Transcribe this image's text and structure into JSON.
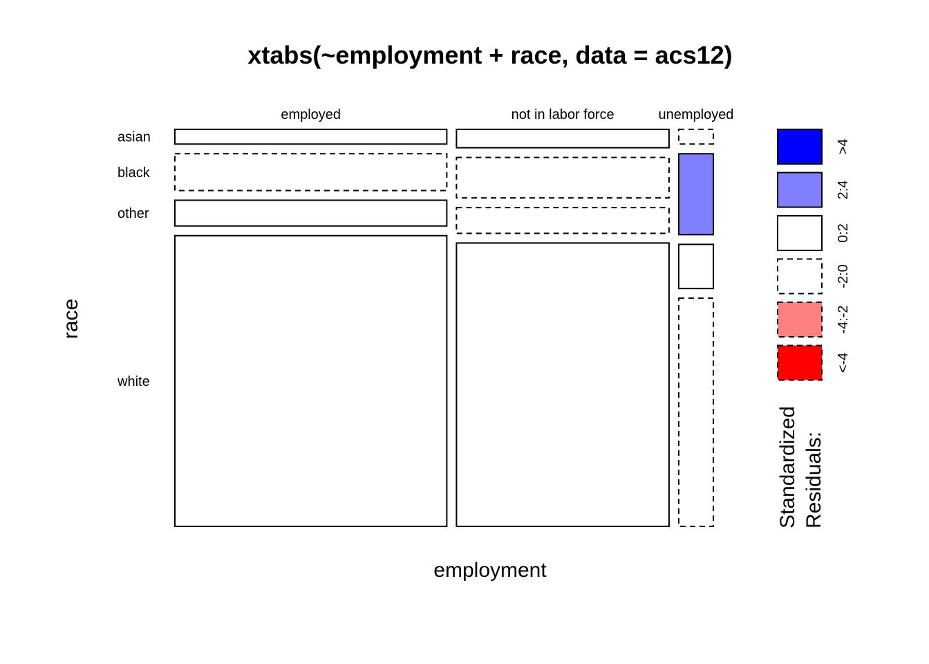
{
  "chart_data": {
    "type": "mosaic",
    "title": "xtabs(~employment + race, data = acs12)",
    "xlabel": "employment",
    "ylabel": "race",
    "x_categories": [
      "employed",
      "not in labor force",
      "unemployed"
    ],
    "y_categories": [
      "asian",
      "black",
      "other",
      "white"
    ],
    "column_proportions": [
      0.55,
      0.43,
      0.07
    ],
    "row_proportions": {
      "employed": [
        0.04,
        0.1,
        0.07,
        0.79
      ],
      "not in labor force": [
        0.05,
        0.11,
        0.07,
        0.77
      ],
      "unemployed": [
        0.04,
        0.22,
        0.12,
        0.62
      ]
    },
    "residual_class": {
      "employed": [
        "0:2",
        "-2:0",
        "0:2",
        "0:2"
      ],
      "not in labor force": [
        "0:2",
        "-2:0",
        "-2:0",
        "0:2"
      ],
      "unemployed": [
        "-2:0",
        "2:4",
        "0:2",
        "-2:0"
      ]
    },
    "legend": {
      "title_lines": [
        "Standardized",
        "Residuals:"
      ],
      "items": [
        {
          "label": ">4",
          "color": "#0000ff",
          "dashed": false
        },
        {
          "label": "2:4",
          "color": "#8080ff",
          "dashed": false
        },
        {
          "label": "0:2",
          "color": "#ffffff",
          "dashed": false
        },
        {
          "label": "-2:0",
          "color": "#ffffff",
          "dashed": true
        },
        {
          "label": "-4:-2",
          "color": "#ff8080",
          "dashed": true
        },
        {
          "label": "<-4",
          "color": "#ff0000",
          "dashed": true
        }
      ]
    }
  }
}
